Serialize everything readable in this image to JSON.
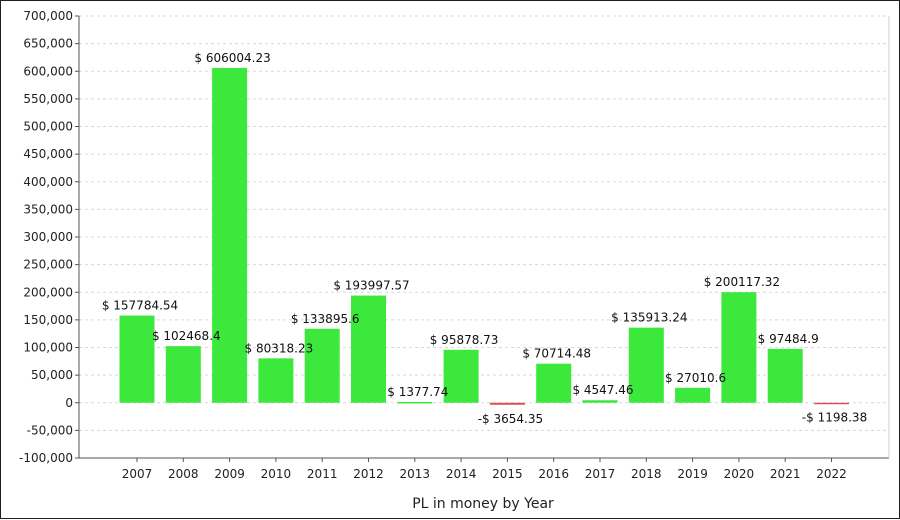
{
  "chart_data": {
    "type": "bar",
    "xlabel": "PL in money by Year",
    "ylabel": "",
    "ylim": [
      -100000,
      700000
    ],
    "y_ticks": [
      -100000,
      -50000,
      0,
      50000,
      100000,
      150000,
      200000,
      250000,
      300000,
      350000,
      400000,
      450000,
      500000,
      550000,
      600000,
      650000,
      700000
    ],
    "y_tick_labels": [
      "-100,000",
      "-50,000",
      "0",
      "50,000",
      "100,000",
      "150,000",
      "200,000",
      "250,000",
      "300,000",
      "350,000",
      "400,000",
      "450,000",
      "500,000",
      "550,000",
      "600,000",
      "650,000",
      "700,000"
    ],
    "grid": true,
    "categories": [
      "2007",
      "2008",
      "2009",
      "2010",
      "2011",
      "2012",
      "2013",
      "2014",
      "2015",
      "2016",
      "2017",
      "2018",
      "2019",
      "2020",
      "2021",
      "2022"
    ],
    "values": [
      157784.54,
      102468.4,
      606004.23,
      80318.23,
      133895.6,
      193997.57,
      1377.74,
      95878.73,
      -3654.35,
      70714.48,
      4547.46,
      135913.24,
      27010.6,
      200117.32,
      97484.9,
      -1198.38
    ],
    "data_labels": [
      "$ 157784.54",
      "$ 102468.4",
      "$ 606004.23",
      "$ 80318.23",
      "$ 133895.6",
      "$ 193997.57",
      "$ 1377.74",
      "$ 95878.73",
      "-$ 3654.35",
      "$ 70714.48",
      "$ 4547.46",
      "$ 135913.24",
      "$ 27010.6",
      "$ 200117.32",
      "$ 97484.9",
      "-$ 1198.38"
    ],
    "colors": {
      "positive": "#3de83d",
      "negative": "#e05050",
      "grid": "#d8d8d8",
      "axis": "#555555"
    }
  }
}
